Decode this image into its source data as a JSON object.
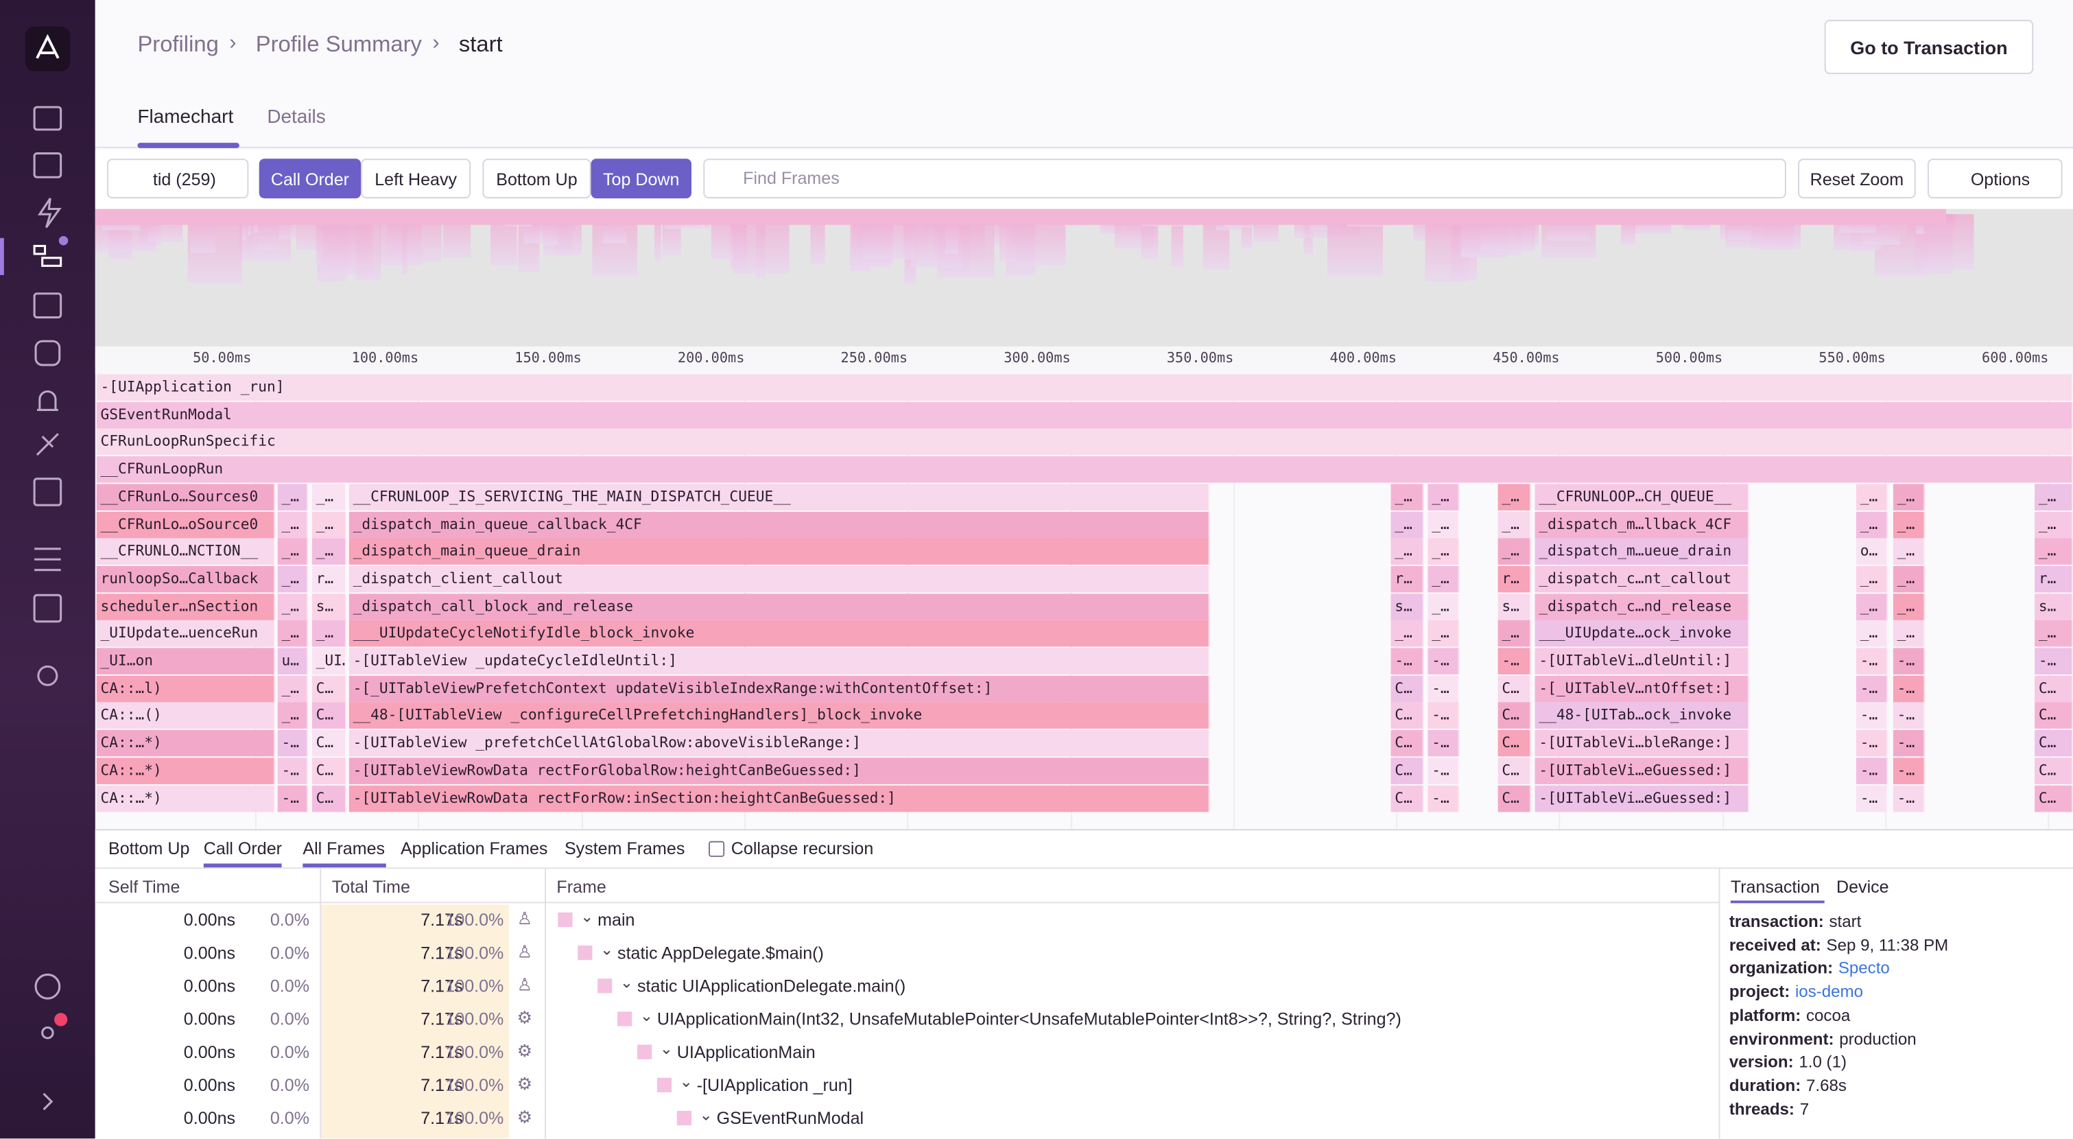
{
  "breadcrumbs": [
    "Profiling",
    "Profile Summary",
    "start"
  ],
  "header_button": "Go to Transaction",
  "tabs": [
    "Flamechart",
    "Details"
  ],
  "toolbar": {
    "thread": "tid (259)",
    "order": [
      "Call Order",
      "Left Heavy"
    ],
    "view": [
      "Bottom Up",
      "Top Down"
    ],
    "search_placeholder": "Find Frames",
    "reset": "Reset Zoom",
    "options": "Options"
  },
  "time_axis": [
    "50.00ms",
    "100.00ms",
    "150.00ms",
    "200.00ms",
    "250.00ms",
    "300.00ms",
    "350.00ms",
    "400.00ms",
    "450.00ms",
    "500.00ms",
    "550.00ms",
    "600.00ms"
  ],
  "flame_rows": [
    [
      "-[UIApplication _run]"
    ],
    [
      "GSEventRunModal"
    ],
    [
      "CFRunLoopRunSpecific"
    ],
    [
      "__CFRunLoopRun"
    ],
    [
      "__CFRunLo…Sources0",
      "_…",
      "_…",
      "__CFRUNLOOP_IS_SERVICING_THE_MAIN_DISPATCH_CUEUE__",
      "_…",
      "_…",
      "_…",
      "__CFRUNLOOP…CH_QUEUE__",
      "_…",
      "_…",
      "_…"
    ],
    [
      "__CFRunLo…oSource0",
      "_…",
      "_…",
      "_dispatch_main_queue_callback_4CF",
      "_…",
      "_…",
      "_…",
      "_dispatch_m…llback_4CF",
      "_…",
      "_…",
      "_…"
    ],
    [
      "__CFRUNLO…NCTION__",
      "_…",
      "_…",
      "_dispatch_main_queue_drain",
      "_…",
      "_…",
      "_…",
      "_dispatch_m…ueue_drain",
      "o…",
      "_…",
      "_…"
    ],
    [
      "runloopSo…Callback",
      "_…",
      "r…",
      "_dispatch_client_callout",
      "r…",
      "_…",
      "r…",
      "_dispatch_c…nt_callout",
      "_…",
      "_…",
      "r…"
    ],
    [
      "scheduler…nSection",
      "_…",
      "s…",
      "_dispatch_call_block_and_release",
      "s…",
      "_…",
      "s…",
      "_dispatch_c…nd_release",
      "_…",
      "_…",
      "s…"
    ],
    [
      "_UIUpdate…uenceRun",
      "_…",
      "_…",
      "___UIUpdateCycleNotifyIdle_block_invoke",
      "_…",
      "_…",
      "_…",
      "___UIUpdate…ock_invoke",
      "_…",
      "_…",
      "_…"
    ],
    [
      "_UI…on",
      "u…",
      "_UI…on",
      "-[UITableView _updateCycleIdleUntil:]",
      "-…",
      "-…",
      "-…",
      "-[UITableVi…dleUntil:]",
      "-…",
      "-…",
      "-…"
    ],
    [
      "CA::…l)",
      "_…",
      "C…",
      "-[_UITableViewPrefetchContext updateVisibleIndexRange:withContentOffset:]",
      "C…",
      "-…",
      "C…",
      "-[_UITableV…ntOffset:]",
      "-…",
      "-…",
      "C…"
    ],
    [
      "CA::…()",
      "_…",
      "C…",
      "__48-[UITableView _configureCellPrefetchingHandlers]_block_invoke",
      "C…",
      "-…",
      "C…",
      "__48-[UITab…ock_invoke",
      "-…",
      "-…",
      "C…"
    ],
    [
      "CA::…*)",
      "-…",
      "C…",
      "-[UITableView _prefetchCellAtGlobalRow:aboveVisibleRange:]",
      "C…",
      "-…",
      "C…",
      "-[UITableVi…bleRange:]",
      "-…",
      "-…",
      "C…"
    ],
    [
      "CA::…*)",
      "-…",
      "C…",
      "-[UITableViewRowData rectForGlobalRow:heightCanBeGuessed:]",
      "C…",
      "-…",
      "C…",
      "-[UITableVi…eGuessed:]",
      "-…",
      "-…",
      "C…"
    ],
    [
      "CA::…*)",
      "-…",
      "C…",
      "-[UITableViewRowData rectForRow:inSection:heightCanBeGuessed:]",
      "C…",
      "-…",
      "C…",
      "-[UITableVi…eGuessed:]",
      "-…",
      "-…",
      "C…"
    ]
  ],
  "bottom_tabs": [
    "Bottom Up",
    "Call Order"
  ],
  "frame_filters": [
    "All Frames",
    "Application Frames",
    "System Frames"
  ],
  "collapse_recursion": "Collapse recursion",
  "table": {
    "headers": [
      "Self Time",
      "Total Time",
      "Frame"
    ],
    "rows": [
      {
        "self_time": "0.00ns",
        "self_pct": "0.0%",
        "total_time": "7.17s",
        "total_pct": "100.0%",
        "frame": "main",
        "frame_type": "application"
      },
      {
        "self_time": "0.00ns",
        "self_pct": "0.0%",
        "total_time": "7.17s",
        "total_pct": "100.0%",
        "frame": "static AppDelegate.$main()",
        "frame_type": "application"
      },
      {
        "self_time": "0.00ns",
        "self_pct": "0.0%",
        "total_time": "7.17s",
        "total_pct": "100.0%",
        "frame": "static UIApplicationDelegate.main()",
        "frame_type": "application"
      },
      {
        "self_time": "0.00ns",
        "self_pct": "0.0%",
        "total_time": "7.17s",
        "total_pct": "100.0%",
        "frame": "UIApplicationMain(Int32, UnsafeMutablePointer<UnsafeMutablePointer<Int8>>?, String?, String?)",
        "frame_type": "system"
      },
      {
        "self_time": "0.00ns",
        "self_pct": "0.0%",
        "total_time": "7.17s",
        "total_pct": "100.0%",
        "frame": "UIApplicationMain",
        "frame_type": "system"
      },
      {
        "self_time": "0.00ns",
        "self_pct": "0.0%",
        "total_time": "7.17s",
        "total_pct": "100.0%",
        "frame": "-[UIApplication _run]",
        "frame_type": "system"
      },
      {
        "self_time": "0.00ns",
        "self_pct": "0.0%",
        "total_time": "7.17s",
        "total_pct": "100.0%",
        "frame": "GSEventRunModal",
        "frame_type": "system"
      }
    ]
  },
  "side_tabs": [
    "Transaction",
    "Device"
  ],
  "details": [
    {
      "key": "transaction:",
      "value": "start"
    },
    {
      "key": "received at:",
      "value": "Sep 9, 11:38 PM"
    },
    {
      "key": "organization:",
      "value": "Specto",
      "link": true
    },
    {
      "key": "project:",
      "value": "ios-demo",
      "link": true
    },
    {
      "key": "platform:",
      "value": "cocoa"
    },
    {
      "key": "environment:",
      "value": "production"
    },
    {
      "key": "version:",
      "value": "1.0 (1)"
    },
    {
      "key": "duration:",
      "value": "7.68s"
    },
    {
      "key": "threads:",
      "value": "7"
    }
  ]
}
